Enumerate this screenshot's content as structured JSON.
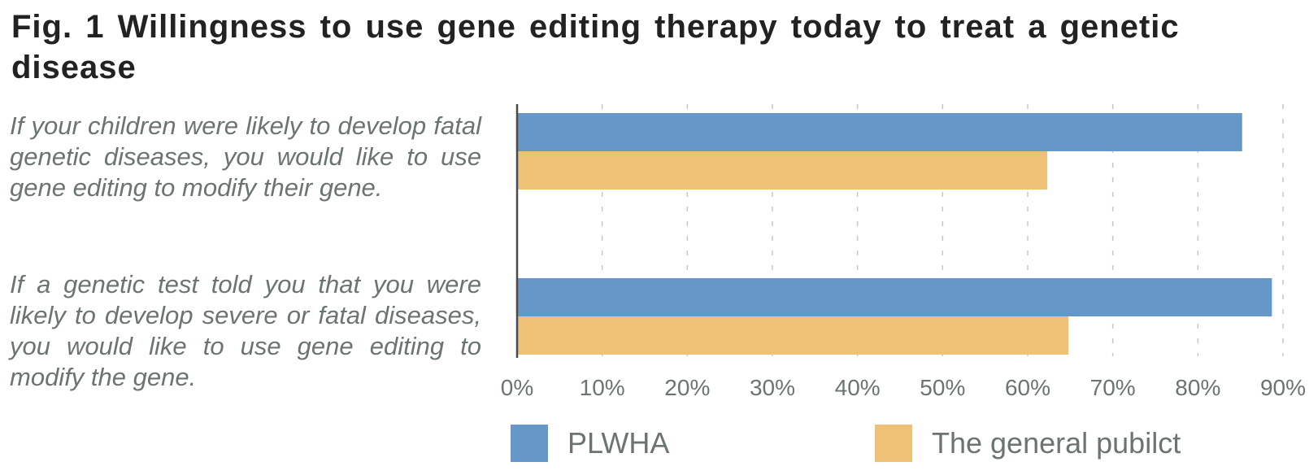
{
  "title": "Fig. 1 Willingness to use gene editing therapy today to treat a genetic disease",
  "chart_data": {
    "type": "bar",
    "orientation": "horizontal",
    "categories": [
      "If your children were likely to develop fatal genetic diseases, you would like to use gene editing to modify their gene.",
      "If a genetic test told you that you were likely to develop severe or fatal diseases, you would like to use gene editing to modify the gene."
    ],
    "series": [
      {
        "name": "PLWHA",
        "color": "#6598c8",
        "values": [
          85.2,
          88.7
        ]
      },
      {
        "name": "The general pubilct",
        "color": "#eec177",
        "values": [
          62.3,
          64.8
        ]
      }
    ],
    "xlim": [
      0,
      90
    ],
    "x_ticks": [
      "0%",
      "10%",
      "20%",
      "30%",
      "40%",
      "50%",
      "60%",
      "70%",
      "80%",
      "90%"
    ],
    "grid": "vertical-dashed",
    "legend_position": "bottom"
  }
}
